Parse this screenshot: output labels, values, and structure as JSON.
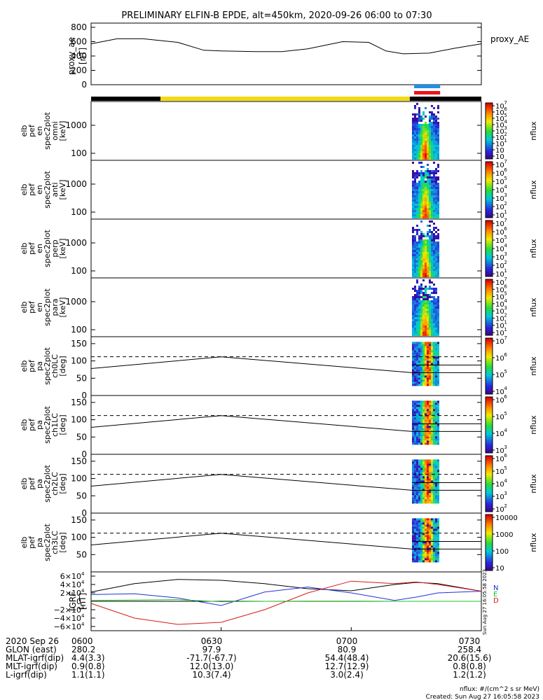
{
  "title": "PRELIMINARY ELFIN-B EPDE, alt=450km, 2020-09-26 06:00 to 07:30",
  "colors": {
    "ax": "#000000",
    "blue": "#1f8fe8",
    "red": "#e8141c",
    "yellow": "#f5d90f",
    "green": "#1fd21f",
    "grf_blue": "#2030d8",
    "grf_red": "#d81818",
    "grf_green": "#20c020"
  },
  "chart_data": [
    {
      "type": "line",
      "panel": "proxy_ae",
      "ylabel": [
        "proxy_ae",
        "[nT]"
      ],
      "series_label": "proxy_AE",
      "ylim": [
        0,
        800
      ],
      "yticks": [
        "800",
        "600",
        "400",
        "200",
        "0"
      ],
      "x_minutes": [
        0,
        6,
        12,
        20,
        26,
        30,
        38,
        44,
        50,
        58,
        64,
        68,
        72,
        78,
        84,
        90
      ],
      "values": [
        570,
        640,
        640,
        590,
        480,
        470,
        460,
        460,
        500,
        600,
        590,
        470,
        430,
        440,
        510,
        570
      ]
    },
    {
      "type": "bar",
      "panel": "state_bar",
      "segments": [
        {
          "from": 0,
          "to": 16,
          "color": "#000000"
        },
        {
          "from": 16,
          "to": 73.5,
          "color": "#f5d90f"
        },
        {
          "from": 73.5,
          "to": 90,
          "color": "#000000"
        }
      ],
      "markers": [
        {
          "from": 74.5,
          "to": 80.5,
          "color": "#1f8fe8"
        },
        {
          "from": 74.5,
          "to": 80.5,
          "color": "#e8141c"
        }
      ]
    },
    {
      "type": "heatmap",
      "panel": "omni",
      "ylabel": [
        "elb",
        "pef",
        "en",
        "spec2plot",
        "omni",
        "[keV]"
      ],
      "yticks": [
        "1000",
        "100"
      ],
      "cbar_ticks": [
        "10",
        "10",
        "10",
        "10",
        "10",
        "10",
        "10",
        "10",
        "10"
      ],
      "cbar_exp": [
        "7",
        "6",
        "5",
        "4",
        "3",
        "2",
        "1",
        "",
        ""
      ],
      "cbar_label": "nflux"
    },
    {
      "type": "heatmap",
      "panel": "anti",
      "ylabel": [
        "elb",
        "pef",
        "en",
        "spec2plot",
        "anti",
        "[keV]"
      ],
      "yticks": [
        "1000",
        "100"
      ],
      "cbar_ticks": [
        "10",
        "10",
        "10",
        "10",
        "10",
        "10",
        "10"
      ],
      "cbar_exp": [
        "7",
        "6",
        "5",
        "4",
        "3",
        "2",
        "1"
      ],
      "cbar_label": "nflux"
    },
    {
      "type": "heatmap",
      "panel": "perp",
      "ylabel": [
        "elb",
        "pef",
        "en",
        "spec2plot",
        "perp",
        "[keV]"
      ],
      "yticks": [
        "1000",
        "100"
      ],
      "cbar_ticks": [
        "10",
        "10",
        "10",
        "10",
        "10",
        "10",
        "10"
      ],
      "cbar_exp": [
        "7",
        "6",
        "5",
        "4",
        "3",
        "2",
        "1"
      ],
      "cbar_label": "nflux"
    },
    {
      "type": "heatmap",
      "panel": "para",
      "ylabel": [
        "elb",
        "pef",
        "en",
        "spec2plot",
        "para",
        "[keV]"
      ],
      "yticks": [
        "1000",
        "100"
      ],
      "cbar_ticks": [
        "10",
        "10",
        "10",
        "10",
        "10",
        "10",
        "10",
        "10"
      ],
      "cbar_exp": [
        "7",
        "6",
        "5",
        "4",
        "3",
        "2",
        "1",
        "1"
      ],
      "cbar_label": "nflux"
    },
    {
      "type": "heatmap",
      "panel": "ch0LC",
      "ylabel": [
        "elb",
        "pef",
        "pa",
        "spec2plot",
        "ch0LC",
        "[deg]"
      ],
      "yticks": [
        "150",
        "100",
        "50",
        "0"
      ],
      "cbar_ticks": [
        "10",
        "10",
        "10",
        "10"
      ],
      "cbar_exp": [
        "7",
        "6",
        "5",
        "4"
      ],
      "cbar_label": "nflux"
    },
    {
      "type": "heatmap",
      "panel": "ch1LC",
      "ylabel": [
        "elb",
        "pef",
        "pa",
        "spec2plot",
        "ch1LC",
        "[deg]"
      ],
      "yticks": [
        "150",
        "100",
        "50",
        "0"
      ],
      "cbar_ticks": [
        "10",
        "10",
        "10",
        "10"
      ],
      "cbar_exp": [
        "6",
        "5",
        "4",
        "3"
      ],
      "cbar_label": "nflux"
    },
    {
      "type": "heatmap",
      "panel": "ch2LC",
      "ylabel": [
        "elb",
        "pef",
        "pa",
        "spec2plot",
        "ch2LC",
        "[deg]"
      ],
      "yticks": [
        "150",
        "100",
        "50",
        "0"
      ],
      "cbar_ticks": [
        "10",
        "10",
        "10",
        "10",
        "10"
      ],
      "cbar_exp": [
        "6",
        "5",
        "4",
        "3",
        "2"
      ],
      "cbar_label": "nflux"
    },
    {
      "type": "heatmap",
      "panel": "ch3LC",
      "ylabel": [
        "elb",
        "pef",
        "pa",
        "spec2plot",
        "ch3LC",
        "[deg]"
      ],
      "yticks": [
        "150",
        "100",
        "50"
      ],
      "cbar_ticks": [
        "10000",
        "1000",
        "100",
        "10"
      ],
      "cbar_exp": [
        "",
        "",
        "",
        ""
      ],
      "cbar_label": "nflux"
    },
    {
      "type": "line",
      "panel": "igrf",
      "ylabel": [
        "IGRF",
        "[nT]"
      ],
      "yticks": [
        "6×10",
        "4×10",
        "2×10",
        "0",
        "−2×10",
        "−4×10",
        "−6×10"
      ],
      "ytick_exp": "4",
      "series_labels": [
        "N",
        "E",
        "D"
      ],
      "ylim": [
        -60000,
        60000
      ],
      "x_minutes": [
        0,
        10,
        20,
        30,
        40,
        50,
        60,
        70,
        75,
        80,
        90
      ],
      "series": [
        {
          "name": "N",
          "values": [
            22000,
            42000,
            52000,
            50000,
            42000,
            30000,
            25000,
            40000,
            45000,
            42000,
            24000
          ]
        },
        {
          "name": "E",
          "values": [
            16000,
            18000,
            8000,
            -10000,
            22000,
            34000,
            20000,
            2000,
            10000,
            20000,
            24000
          ]
        },
        {
          "name": "D",
          "values": [
            -5000,
            -40000,
            -55000,
            -50000,
            -20000,
            20000,
            48000,
            42000,
            46000,
            40000,
            24000
          ]
        },
        {
          "name": "",
          "values": [
            2000,
            3000,
            4000,
            -1000,
            0,
            500,
            500,
            0,
            0,
            0,
            0
          ]
        }
      ]
    }
  ],
  "dashed_level_deg": 112,
  "solid_levels_deg": [
    88,
    66
  ],
  "lc_curve": {
    "x_minutes": [
      0,
      30,
      75
    ],
    "values": [
      78,
      112,
      65
    ]
  },
  "ticklabels_x": {
    "rows": [
      [
        "2020 Sep 26",
        "0600",
        "0630",
        "0700",
        "0730"
      ],
      [
        "GLON (east)",
        "280.2",
        "97.9",
        "80.9",
        "258.4"
      ],
      [
        "MLAT-igrf(dip)",
        "4.4(3.3)",
        "-71.7(-67.7)",
        "54.4(48.4)",
        "20.6(15.6)"
      ],
      [
        "MLT-igrf(dip)",
        "0.9(0.8)",
        "12.0(13.0)",
        "12.7(12.9)",
        "0.8(0.8)"
      ],
      [
        "L-igrf(dip)",
        "1.1(1.1)",
        "10.3(7.4)",
        "3.0(2.4)",
        "1.2(1.2)"
      ]
    ]
  },
  "footer": [
    "nflux: #/(cm^2 s sr MeV)",
    "Created: Sun Aug 27 16:05:58 2023"
  ],
  "side_stamp": "Sun Aug 27 16:05:58 2023"
}
